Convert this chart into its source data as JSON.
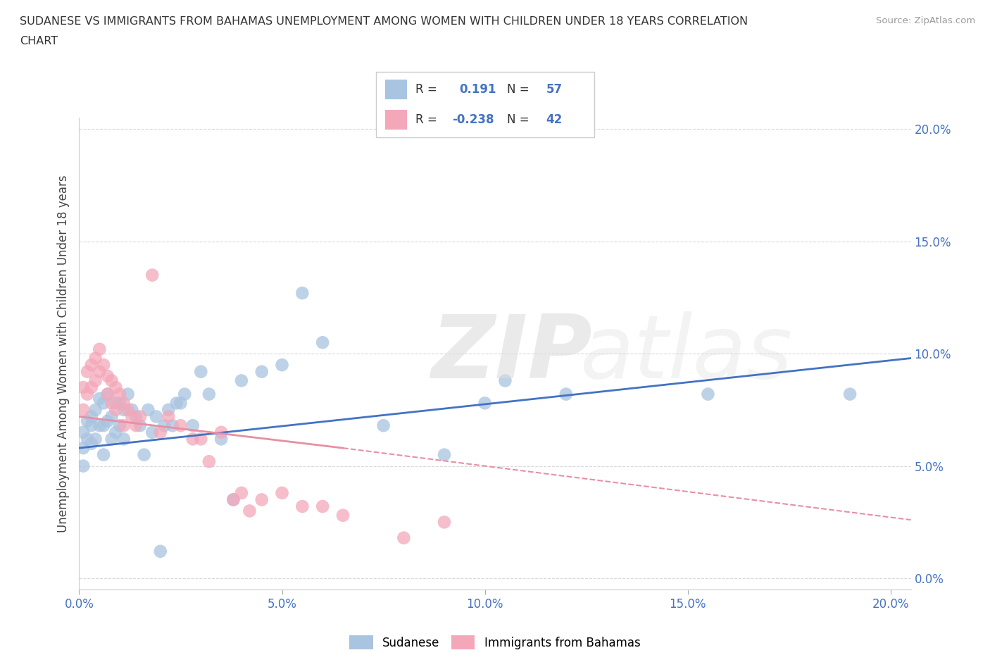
{
  "title_line1": "SUDANESE VS IMMIGRANTS FROM BAHAMAS UNEMPLOYMENT AMONG WOMEN WITH CHILDREN UNDER 18 YEARS CORRELATION",
  "title_line2": "CHART",
  "source": "Source: ZipAtlas.com",
  "ylabel": "Unemployment Among Women with Children Under 18 years",
  "xlim": [
    0.0,
    0.205
  ],
  "ylim": [
    -0.005,
    0.205
  ],
  "xticks": [
    0.0,
    0.05,
    0.1,
    0.15,
    0.2
  ],
  "yticks": [
    0.0,
    0.05,
    0.1,
    0.15,
    0.2
  ],
  "xticklabels": [
    "0.0%",
    "5.0%",
    "10.0%",
    "15.0%",
    "20.0%"
  ],
  "yticklabels": [
    "0.0%",
    "5.0%",
    "10.0%",
    "15.0%",
    "20.0%"
  ],
  "sudanese_color": "#a8c4e0",
  "bahamas_color": "#f4a7b9",
  "sudanese_line_color": "#4472c4",
  "bahamas_line_color": "#e88fa3",
  "tick_color": "#4472c4",
  "grid_color": "#d8d8d8",
  "sudanese_R": 0.191,
  "sudanese_N": 57,
  "bahamas_R": -0.238,
  "bahamas_N": 42,
  "sud_line_x0": 0.0,
  "sud_line_x1": 0.205,
  "sud_line_y0": 0.058,
  "sud_line_y1": 0.098,
  "bah_line_solid_x0": 0.0,
  "bah_line_solid_x1": 0.065,
  "bah_line_solid_y0": 0.072,
  "bah_line_solid_y1": 0.058,
  "bah_line_dash_x0": 0.065,
  "bah_line_dash_x1": 0.205,
  "bah_line_dash_y0": 0.058,
  "bah_line_dash_y1": 0.026,
  "sud_scatter_x": [
    0.001,
    0.001,
    0.001,
    0.002,
    0.002,
    0.003,
    0.003,
    0.003,
    0.004,
    0.004,
    0.005,
    0.005,
    0.006,
    0.006,
    0.006,
    0.007,
    0.007,
    0.008,
    0.008,
    0.009,
    0.009,
    0.01,
    0.01,
    0.011,
    0.011,
    0.012,
    0.013,
    0.014,
    0.015,
    0.016,
    0.017,
    0.018,
    0.019,
    0.02,
    0.021,
    0.022,
    0.023,
    0.024,
    0.025,
    0.026,
    0.028,
    0.03,
    0.032,
    0.035,
    0.038,
    0.04,
    0.045,
    0.05,
    0.055,
    0.06,
    0.075,
    0.09,
    0.1,
    0.105,
    0.12,
    0.155,
    0.19
  ],
  "sud_scatter_y": [
    0.065,
    0.058,
    0.05,
    0.07,
    0.062,
    0.068,
    0.072,
    0.06,
    0.075,
    0.062,
    0.08,
    0.068,
    0.078,
    0.068,
    0.055,
    0.082,
    0.07,
    0.072,
    0.062,
    0.078,
    0.065,
    0.078,
    0.068,
    0.075,
    0.062,
    0.082,
    0.075,
    0.072,
    0.068,
    0.055,
    0.075,
    0.065,
    0.072,
    0.012,
    0.068,
    0.075,
    0.068,
    0.078,
    0.078,
    0.082,
    0.068,
    0.092,
    0.082,
    0.062,
    0.035,
    0.088,
    0.092,
    0.095,
    0.127,
    0.105,
    0.068,
    0.055,
    0.078,
    0.088,
    0.082,
    0.082,
    0.082
  ],
  "bah_scatter_x": [
    0.001,
    0.001,
    0.002,
    0.002,
    0.003,
    0.003,
    0.004,
    0.004,
    0.005,
    0.005,
    0.006,
    0.007,
    0.007,
    0.008,
    0.008,
    0.009,
    0.009,
    0.01,
    0.011,
    0.011,
    0.012,
    0.013,
    0.014,
    0.015,
    0.018,
    0.02,
    0.022,
    0.025,
    0.028,
    0.03,
    0.032,
    0.035,
    0.038,
    0.04,
    0.042,
    0.045,
    0.05,
    0.055,
    0.06,
    0.065,
    0.08,
    0.09
  ],
  "bah_scatter_y": [
    0.085,
    0.075,
    0.092,
    0.082,
    0.095,
    0.085,
    0.098,
    0.088,
    0.102,
    0.092,
    0.095,
    0.09,
    0.082,
    0.088,
    0.078,
    0.085,
    0.075,
    0.082,
    0.078,
    0.068,
    0.075,
    0.072,
    0.068,
    0.072,
    0.135,
    0.065,
    0.072,
    0.068,
    0.062,
    0.062,
    0.052,
    0.065,
    0.035,
    0.038,
    0.03,
    0.035,
    0.038,
    0.032,
    0.032,
    0.028,
    0.018,
    0.025
  ]
}
